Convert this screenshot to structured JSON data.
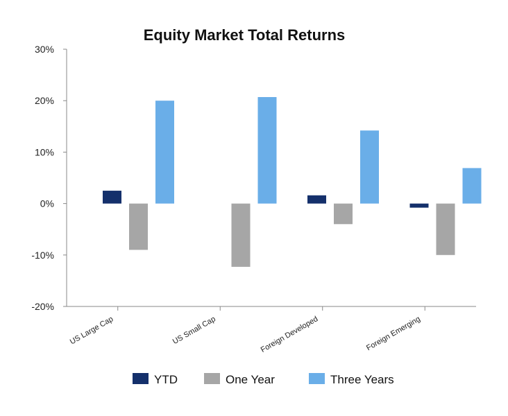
{
  "chart_data": {
    "type": "bar",
    "title": "Equity Market Total Returns",
    "xlabel": "",
    "ylabel": "",
    "categories": [
      "US Large Cap",
      "US Small Cap",
      "Foreign Developed",
      "Foreign Emerging"
    ],
    "series": [
      {
        "name": "YTD",
        "color": "#14306b",
        "values": [
          2.5,
          0.0,
          1.6,
          -0.8
        ]
      },
      {
        "name": "One Year",
        "color": "#a6a6a6",
        "values": [
          -9.0,
          -12.3,
          -4.0,
          -10.0
        ]
      },
      {
        "name": "Three Years",
        "color": "#6aaee8",
        "values": [
          20.0,
          20.7,
          14.2,
          6.9
        ]
      }
    ],
    "ylim": [
      -20,
      30
    ],
    "yticks": [
      30,
      20,
      10,
      0,
      -10,
      -20
    ],
    "ytick_labels": [
      "30%",
      "20%",
      "10%",
      "0%",
      "-10%",
      "-20%"
    ],
    "grid": false,
    "legend_position": "bottom"
  }
}
